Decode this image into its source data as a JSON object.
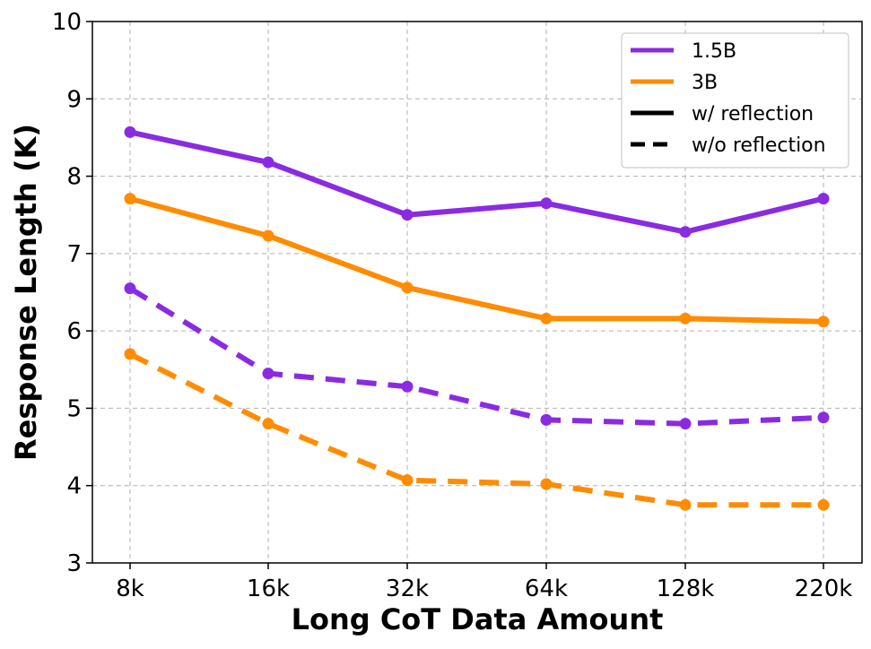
{
  "chart_data": {
    "type": "line",
    "title": "",
    "xlabel": "Long CoT Data Amount",
    "ylabel": "Response Length (K)",
    "categories": [
      "8k",
      "16k",
      "32k",
      "64k",
      "128k",
      "220k"
    ],
    "ylim": [
      3,
      10
    ],
    "yticks": [
      "3",
      "4",
      "5",
      "6",
      "7",
      "8",
      "9",
      "10"
    ],
    "grid": true,
    "legend_position": "top-right",
    "legend": [
      {
        "label": "1.5B",
        "kind": "color",
        "color": "#8a2be2"
      },
      {
        "label": "3B",
        "kind": "color",
        "color": "#ff8c00"
      },
      {
        "label": "w/ reflection",
        "kind": "style",
        "style": "solid"
      },
      {
        "label": "w/o reflection",
        "kind": "style",
        "style": "dashed"
      }
    ],
    "series": [
      {
        "name": "1.5B w/ reflection",
        "color": "#8a2be2",
        "style": "solid",
        "values": [
          8.57,
          8.18,
          7.5,
          7.65,
          7.28,
          7.71
        ]
      },
      {
        "name": "3B w/ reflection",
        "color": "#ff8c00",
        "style": "solid",
        "values": [
          7.71,
          7.23,
          6.56,
          6.16,
          6.16,
          6.12
        ]
      },
      {
        "name": "1.5B w/o reflection",
        "color": "#8a2be2",
        "style": "dashed",
        "values": [
          6.55,
          5.45,
          5.28,
          4.85,
          4.8,
          4.88
        ]
      },
      {
        "name": "3B w/o reflection",
        "color": "#ff8c00",
        "style": "dashed",
        "values": [
          5.7,
          4.8,
          4.07,
          4.02,
          3.75,
          3.75
        ]
      }
    ]
  }
}
